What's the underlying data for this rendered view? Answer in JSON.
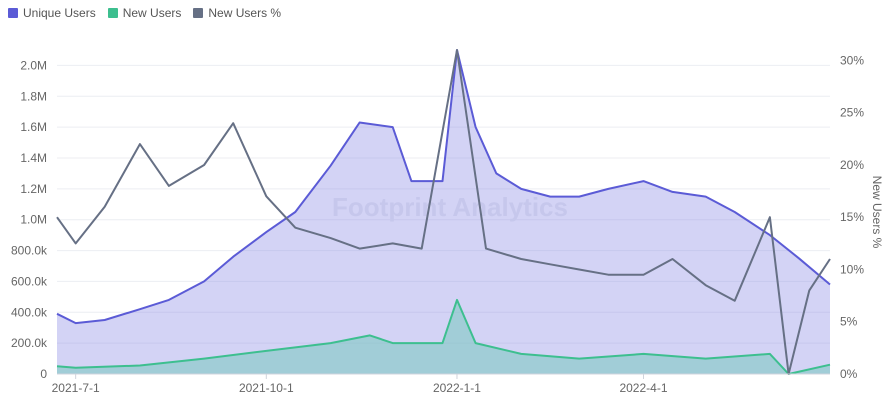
{
  "legend": [
    {
      "label": "Unique Users",
      "color": "#5b5bd6"
    },
    {
      "label": "New Users",
      "color": "#3dbf8f"
    },
    {
      "label": "New Users %",
      "color": "#667085"
    }
  ],
  "watermark": "Footprint Analytics",
  "chart_data": {
    "type": "line",
    "title": "",
    "y_left": {
      "ticks": [
        "0",
        "200.0k",
        "400.0k",
        "600.0k",
        "800.0k",
        "1.0M",
        "1.2M",
        "1.4M",
        "1.6M",
        "1.8M",
        "2.0M"
      ],
      "range": [
        0,
        2100000
      ]
    },
    "y_right": {
      "label": "New Users %",
      "ticks": [
        "0%",
        "5%",
        "10%",
        "15%",
        "20%",
        "25%",
        "30%"
      ],
      "range": [
        0,
        31
      ]
    },
    "x_ticks": [
      "2021-7-1",
      "2021-10-1",
      "2022-1-1",
      "2022-4-1"
    ],
    "x_range": [
      "2021-6-22",
      "2022-6-30"
    ],
    "series": [
      {
        "name": "Unique Users",
        "axis": "left",
        "style": "area",
        "points": [
          [
            "2021-6-22",
            390000
          ],
          [
            "2021-7-1",
            330000
          ],
          [
            "2021-7-15",
            350000
          ],
          [
            "2021-8-1",
            420000
          ],
          [
            "2021-8-15",
            480000
          ],
          [
            "2021-9-1",
            600000
          ],
          [
            "2021-9-15",
            760000
          ],
          [
            "2021-10-1",
            920000
          ],
          [
            "2021-10-15",
            1050000
          ],
          [
            "2021-11-1",
            1350000
          ],
          [
            "2021-11-15",
            1630000
          ],
          [
            "2021-12-1",
            1600000
          ],
          [
            "2021-12-10",
            1250000
          ],
          [
            "2021-12-25",
            1250000
          ],
          [
            "2022-1-1",
            2100000
          ],
          [
            "2022-1-10",
            1600000
          ],
          [
            "2022-1-20",
            1300000
          ],
          [
            "2022-2-1",
            1200000
          ],
          [
            "2022-2-15",
            1150000
          ],
          [
            "2022-3-1",
            1150000
          ],
          [
            "2022-3-15",
            1200000
          ],
          [
            "2022-4-1",
            1250000
          ],
          [
            "2022-4-15",
            1180000
          ],
          [
            "2022-5-1",
            1150000
          ],
          [
            "2022-5-15",
            1050000
          ],
          [
            "2022-6-1",
            900000
          ],
          [
            "2022-6-15",
            750000
          ],
          [
            "2022-6-30",
            580000
          ]
        ]
      },
      {
        "name": "New Users",
        "axis": "left",
        "style": "area",
        "points": [
          [
            "2021-6-22",
            50000
          ],
          [
            "2021-7-1",
            40000
          ],
          [
            "2021-8-1",
            55000
          ],
          [
            "2021-9-1",
            100000
          ],
          [
            "2021-10-1",
            150000
          ],
          [
            "2021-11-1",
            200000
          ],
          [
            "2021-11-20",
            250000
          ],
          [
            "2021-12-1",
            200000
          ],
          [
            "2021-12-25",
            200000
          ],
          [
            "2022-1-1",
            480000
          ],
          [
            "2022-1-10",
            200000
          ],
          [
            "2022-2-1",
            130000
          ],
          [
            "2022-3-1",
            100000
          ],
          [
            "2022-4-1",
            130000
          ],
          [
            "2022-5-1",
            100000
          ],
          [
            "2022-6-1",
            130000
          ],
          [
            "2022-6-10",
            0
          ],
          [
            "2022-6-30",
            60000
          ]
        ]
      },
      {
        "name": "New Users %",
        "axis": "right",
        "style": "line",
        "points": [
          [
            "2021-6-22",
            15
          ],
          [
            "2021-7-1",
            12.5
          ],
          [
            "2021-7-15",
            16
          ],
          [
            "2021-8-1",
            22
          ],
          [
            "2021-8-15",
            18
          ],
          [
            "2021-9-1",
            20
          ],
          [
            "2021-9-15",
            24
          ],
          [
            "2021-10-1",
            17
          ],
          [
            "2021-10-15",
            14
          ],
          [
            "2021-11-1",
            13
          ],
          [
            "2021-11-15",
            12
          ],
          [
            "2021-12-1",
            12.5
          ],
          [
            "2021-12-15",
            12
          ],
          [
            "2022-1-1",
            31
          ],
          [
            "2022-1-15",
            12
          ],
          [
            "2022-2-1",
            11
          ],
          [
            "2022-2-15",
            10.5
          ],
          [
            "2022-3-1",
            10
          ],
          [
            "2022-3-15",
            9.5
          ],
          [
            "2022-4-1",
            9.5
          ],
          [
            "2022-4-15",
            11
          ],
          [
            "2022-5-1",
            8.5
          ],
          [
            "2022-5-15",
            7
          ],
          [
            "2022-6-1",
            15
          ],
          [
            "2022-6-10",
            0
          ],
          [
            "2022-6-20",
            8
          ],
          [
            "2022-6-30",
            11
          ]
        ]
      }
    ]
  }
}
